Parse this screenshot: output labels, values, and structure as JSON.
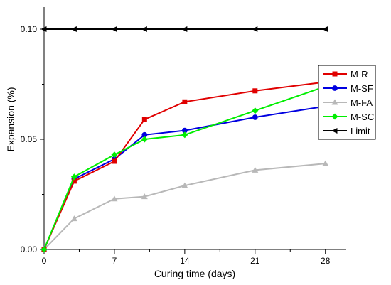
{
  "chart_data": {
    "type": "line",
    "xlabel": "Curing time (days)",
    "ylabel": "Expansion (%)",
    "xlim": [
      0,
      30
    ],
    "ylim": [
      0,
      0.11
    ],
    "x_ticks": [
      0,
      7,
      14,
      21,
      28
    ],
    "x_tick_labels": [
      "0",
      "7",
      "14",
      "21",
      "28"
    ],
    "y_ticks": [
      0.0,
      0.05,
      0.1
    ],
    "y_tick_labels": [
      "0.00",
      "0.05",
      "0.10"
    ],
    "grid": false,
    "legend_position": "right",
    "series": [
      {
        "name": "M-R",
        "color": "#e00000",
        "marker": "square",
        "x": [
          0,
          3,
          7,
          10,
          14,
          21,
          28
        ],
        "y": [
          0.0,
          0.031,
          0.04,
          0.059,
          0.067,
          0.072,
          0.076
        ]
      },
      {
        "name": "M-SF",
        "color": "#0000e0",
        "marker": "circle",
        "x": [
          0,
          3,
          7,
          10,
          14,
          21,
          28
        ],
        "y": [
          0.0,
          0.032,
          0.041,
          0.052,
          0.054,
          0.06,
          0.065
        ]
      },
      {
        "name": "M-FA",
        "color": "#b8b8b8",
        "marker": "triangle-up",
        "x": [
          0,
          3,
          7,
          10,
          14,
          21,
          28
        ],
        "y": [
          0.0,
          0.014,
          0.023,
          0.024,
          0.029,
          0.036,
          0.039
        ]
      },
      {
        "name": "M-SC",
        "color": "#00ee00",
        "marker": "diamond",
        "x": [
          0,
          3,
          7,
          10,
          14,
          21,
          28
        ],
        "y": [
          0.0,
          0.033,
          0.043,
          0.05,
          0.052,
          0.063,
          0.074
        ]
      },
      {
        "name": "Limit",
        "color": "#000000",
        "marker": "triangle-left",
        "x": [
          0,
          3,
          7,
          10,
          14,
          21,
          28
        ],
        "y": [
          0.1,
          0.1,
          0.1,
          0.1,
          0.1,
          0.1,
          0.1
        ]
      }
    ]
  }
}
